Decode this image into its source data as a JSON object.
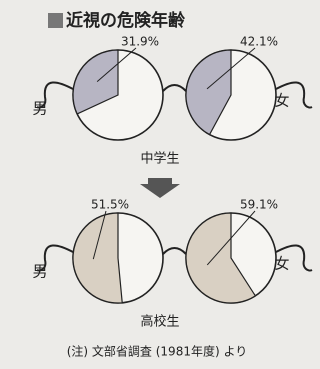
{
  "title": "近視の危険年齢",
  "note": "(注)  文部省調査 (1981年度) より",
  "chart_data": [
    {
      "type": "pie",
      "label": "中学生",
      "categories": [
        "男",
        "女"
      ],
      "values": [
        31.9,
        42.1
      ],
      "value_labels": [
        "31.9%",
        "42.1%"
      ],
      "color": "#b7b5c3"
    },
    {
      "type": "pie",
      "label": "高校生",
      "categories": [
        "男",
        "女"
      ],
      "values": [
        51.5,
        59.1
      ],
      "value_labels": [
        "51.5%",
        "59.1%"
      ],
      "color": "#d9d0c3"
    }
  ]
}
